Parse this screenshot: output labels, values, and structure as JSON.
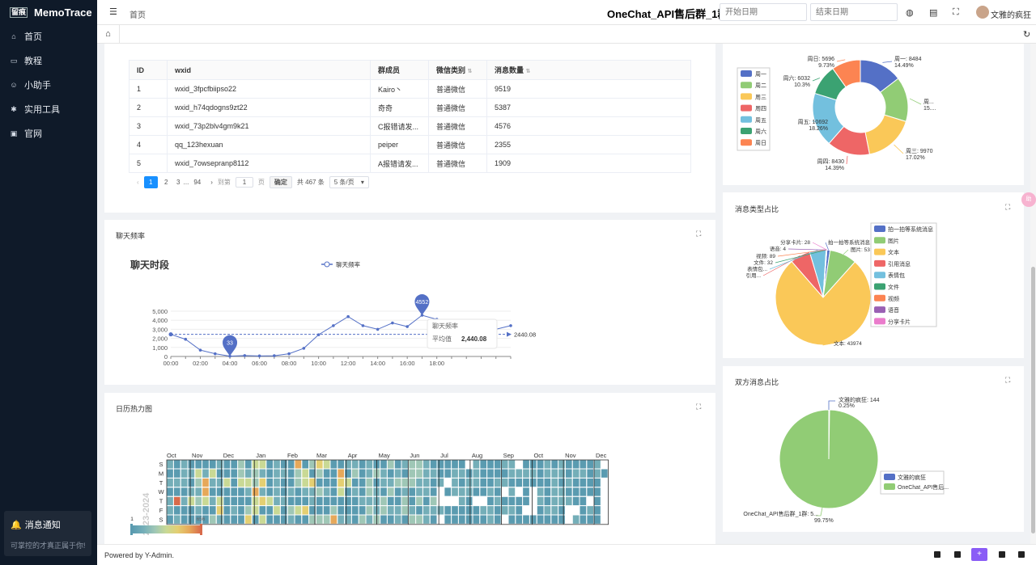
{
  "app": {
    "name": "MemoTrace",
    "logo_text": "留痕"
  },
  "sidebar": {
    "items": [
      {
        "label": "首页",
        "icon": "home-icon"
      },
      {
        "label": "教程",
        "icon": "book-icon"
      },
      {
        "label": "小助手",
        "icon": "robot-icon"
      },
      {
        "label": "实用工具",
        "icon": "tool-icon"
      },
      {
        "label": "官网",
        "icon": "website-icon"
      }
    ]
  },
  "notice": {
    "title": "消息通知",
    "body": "可掌控的才真正属于你!!"
  },
  "header": {
    "breadcrumb": "首页",
    "title": "OneChat_API售后群_1群",
    "start_placeholder": "开始日期",
    "end_placeholder": "结束日期",
    "user_name": "文雅的疯狂"
  },
  "table": {
    "headers": [
      "ID",
      "wxid",
      "群成员",
      "微信类别",
      "消息数量"
    ],
    "rows": [
      [
        "1",
        "wxid_3fpcfbiipso22",
        "Kairo丶",
        "普通微信",
        "9519"
      ],
      [
        "2",
        "wxid_h74qdogns9zt22",
        "奇奇",
        "普通微信",
        "5387"
      ],
      [
        "3",
        "wxid_73p2blv4gm9k21",
        "C报错请发...",
        "普通微信",
        "4576"
      ],
      [
        "4",
        "qq_123hexuan",
        "peiper",
        "普通微信",
        "2355"
      ],
      [
        "5",
        "wxid_7owsepranp8112",
        "A报错请发...",
        "普通微信",
        "1909"
      ]
    ],
    "pagination": {
      "pages": [
        "1",
        "2",
        "3",
        "...",
        "94"
      ],
      "goto_label": "到第",
      "goto_value": "1",
      "page_unit": "页",
      "confirm": "确定",
      "total": "共 467 条",
      "page_size": "5 条/页"
    }
  },
  "charts": {
    "frequency": {
      "card_title": "聊天频率",
      "chart_title": "聊天时段",
      "legend": "聊天频率",
      "tooltip_title": "聊天频率",
      "tooltip_label": "平均值",
      "tooltip_value": "2,440.08",
      "avg_label": "2440.08"
    },
    "heatmap": {
      "card_title": "日历热力图",
      "year_label": "2023-2024",
      "scale_min": "1",
      "scale_max": "656"
    },
    "msg_type": {
      "card_title": "消息类型占比"
    },
    "both": {
      "card_title": "双方消息占比"
    }
  },
  "footer": {
    "text": "Powered by Y-Admin."
  },
  "colors": {
    "sidebar_bg": "#0f1a29",
    "accent": "#1890ff",
    "series": [
      "#5470c6",
      "#91cc75",
      "#fac858",
      "#ee6666",
      "#73c0de",
      "#3ba272",
      "#fc8452",
      "#9a60b4",
      "#ea7ccc"
    ]
  },
  "chart_data": [
    {
      "type": "line",
      "title": "聊天时段",
      "x": [
        "00:00",
        "01:00",
        "02:00",
        "03:00",
        "04:00",
        "05:00",
        "06:00",
        "07:00",
        "08:00",
        "09:00",
        "10:00",
        "11:00",
        "12:00",
        "13:00",
        "14:00",
        "15:00",
        "16:00",
        "17:00",
        "18:00",
        "19:00",
        "20:00",
        "21:00",
        "22:00",
        "23:00"
      ],
      "x_tick_labels": [
        "00:00",
        "02:00",
        "04:00",
        "06:00",
        "08:00",
        "10:00",
        "12:00",
        "14:00",
        "16:00",
        "18:00"
      ],
      "y_ticks": [
        "0",
        "1,000",
        "2,000",
        "3,000",
        "4,000",
        "5,000"
      ],
      "ylim": [
        0,
        5000
      ],
      "series": [
        {
          "name": "聊天频率",
          "values": [
            2440,
            1900,
            700,
            300,
            33,
            100,
            60,
            80,
            300,
            900,
            2400,
            3400,
            4400,
            3400,
            3000,
            3700,
            3300,
            4552,
            4100,
            3900,
            3300,
            3500,
            3000,
            3400
          ]
        }
      ],
      "markpoints": [
        {
          "label": "4552",
          "index": 17
        },
        {
          "label": "33",
          "index": 4
        }
      ],
      "markline": 2440.08,
      "legend": "top-center"
    },
    {
      "type": "pie",
      "subtype": "donut",
      "categories": [
        "周一",
        "周二",
        "周三",
        "周四",
        "周五",
        "周六",
        "周日"
      ],
      "values": [
        8484,
        8800,
        9970,
        8430,
        10692,
        6032,
        5696
      ],
      "labels": [
        {
          "text": "周一: 8484",
          "pct": "14.49%"
        },
        {
          "text": "周...",
          "pct": "15...."
        },
        {
          "text": "周三: 9970",
          "pct": "17.02%"
        },
        {
          "text": "周四: 8430",
          "pct": "14.39%"
        },
        {
          "text": "周五: 10692",
          "pct": "18.26%"
        },
        {
          "text": "周六: 6032",
          "pct": "10.3%"
        },
        {
          "text": "周日: 5696",
          "pct": "9.73%"
        }
      ],
      "legend": "left"
    },
    {
      "type": "pie",
      "categories": [
        "拍一拍等系统消息",
        "图片",
        "文本",
        "引用消息",
        "表情包",
        "文件",
        "视频",
        "语音",
        "分享卡片"
      ],
      "values": [
        607,
        5300,
        43974,
        3900,
        3200,
        32,
        89,
        4,
        28
      ],
      "labels": [
        "拍一拍等系统消息: 607",
        "图片: 53...",
        "文本: 43974",
        "引用...",
        "表情包...",
        "文件: 32",
        "视频: 89",
        "语音: 4",
        "分享卡片: 28"
      ],
      "legend": "right"
    },
    {
      "type": "pie",
      "categories": [
        "文雅的疯狂",
        "OneChat_API售后群_1群"
      ],
      "legend_labels": [
        "文雅的疯狂",
        "OneChat_API售后..."
      ],
      "values": [
        144,
        57000
      ],
      "labels": [
        {
          "text": "文雅的疯狂: 144",
          "pct": "0.25%"
        },
        {
          "text": "OneChat_API售后群_1群: 5...",
          "pct": "99.75%"
        }
      ],
      "legend": "bottom-right"
    },
    {
      "type": "heatmap",
      "title": "2023-2024",
      "months": [
        "Oct",
        "Nov",
        "Dec",
        "Jan",
        "Feb",
        "Mar",
        "Apr",
        "May",
        "Jun",
        "Jul",
        "Aug",
        "Sep",
        "Oct",
        "Nov",
        "Dec"
      ],
      "weekdays": [
        "S",
        "M",
        "T",
        "W",
        "T",
        "F",
        "S"
      ],
      "range": [
        1,
        656
      ]
    }
  ]
}
